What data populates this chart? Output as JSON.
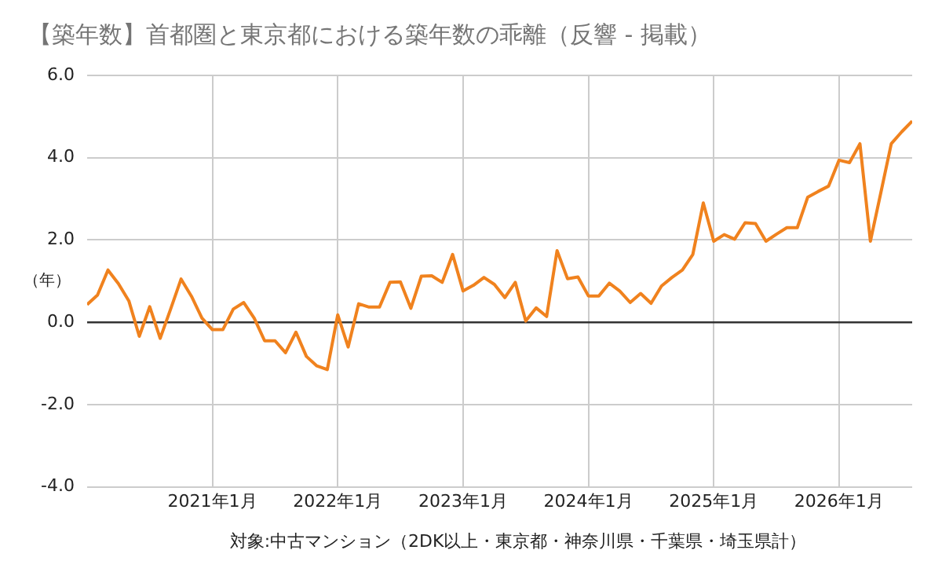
{
  "chart_data": {
    "type": "line",
    "title": "【築年数】首都圏と東京都における築年数の乖離（反響 - 掲載）",
    "ylabel": "（年）",
    "annotations": [
      "対象:中古マンション（2DK以上・東京都・神奈川県・千葉県・埼玉県計）"
    ],
    "x": [
      "2020-01",
      "2020-02",
      "2020-03",
      "2020-04",
      "2020-05",
      "2020-06",
      "2020-07",
      "2020-08",
      "2020-09",
      "2020-10",
      "2020-11",
      "2020-12",
      "2021-01",
      "2021-02",
      "2021-03",
      "2021-04",
      "2021-05",
      "2021-06",
      "2021-07",
      "2021-08",
      "2021-09",
      "2021-10",
      "2021-11",
      "2021-12",
      "2022-01",
      "2022-02",
      "2022-03",
      "2022-04",
      "2022-05",
      "2022-06",
      "2022-07",
      "2022-08",
      "2022-09",
      "2022-10",
      "2022-11",
      "2022-12",
      "2023-01",
      "2023-02",
      "2023-03",
      "2023-04",
      "2023-05",
      "2023-06",
      "2023-07",
      "2023-08",
      "2023-09",
      "2023-10",
      "2023-11",
      "2023-12",
      "2024-01",
      "2024-02",
      "2024-03",
      "2024-04",
      "2024-05",
      "2024-06",
      "2024-07",
      "2024-08",
      "2024-09",
      "2024-10",
      "2024-11",
      "2024-12",
      "2025-01",
      "2025-02",
      "2025-03",
      "2025-04",
      "2025-05",
      "2025-06",
      "2025-07",
      "2025-08",
      "2025-09",
      "2025-10",
      "2025-11",
      "2025-12",
      "2026-01",
      "2026-02",
      "2026-03",
      "2026-04",
      "2026-05",
      "2026-06",
      "2026-07",
      "2026-08"
    ],
    "series": [
      {
        "color": "#f0821e",
        "values": [
          0.43,
          0.66,
          1.27,
          0.94,
          0.52,
          -0.34,
          0.38,
          -0.39,
          0.32,
          1.05,
          0.63,
          0.1,
          -0.18,
          -0.18,
          0.32,
          0.48,
          0.1,
          -0.45,
          -0.45,
          -0.74,
          -0.24,
          -0.83,
          -1.06,
          -1.15,
          0.18,
          -0.6,
          0.45,
          0.37,
          0.37,
          0.97,
          0.98,
          0.34,
          1.12,
          1.13,
          0.97,
          1.65,
          0.76,
          0.9,
          1.09,
          0.92,
          0.6,
          0.97,
          0.03,
          0.35,
          0.14,
          1.74,
          1.06,
          1.1,
          0.64,
          0.64,
          0.95,
          0.76,
          0.48,
          0.7,
          0.46,
          0.88,
          1.09,
          1.27,
          1.65,
          2.9,
          1.97,
          2.13,
          2.02,
          2.42,
          2.4,
          1.97,
          2.14,
          2.3,
          2.3,
          3.04,
          3.18,
          3.31,
          3.94,
          3.88,
          4.34,
          1.97,
          3.15,
          4.34,
          4.63,
          4.89
        ]
      }
    ],
    "xlim": [
      "2020-01",
      "2026-08"
    ],
    "xticks": [
      {
        "value": "2021-01",
        "label": "2021年1月"
      },
      {
        "value": "2022-01",
        "label": "2022年1月"
      },
      {
        "value": "2023-01",
        "label": "2023年1月"
      },
      {
        "value": "2024-01",
        "label": "2024年1月"
      },
      {
        "value": "2025-01",
        "label": "2025年1月"
      },
      {
        "value": "2026-01",
        "label": "2026年1月"
      }
    ],
    "ylim": [
      -4,
      6
    ],
    "yticks": [
      {
        "value": -4,
        "label": "-4.0"
      },
      {
        "value": -2,
        "label": "-2.0"
      },
      {
        "value": 0,
        "label": "0.0"
      },
      {
        "value": 2,
        "label": "2.0"
      },
      {
        "value": 4,
        "label": "4.0"
      },
      {
        "value": 6,
        "label": "6.0"
      }
    ],
    "grid": true,
    "legend": false,
    "marker": "none",
    "line_style": "solid"
  }
}
